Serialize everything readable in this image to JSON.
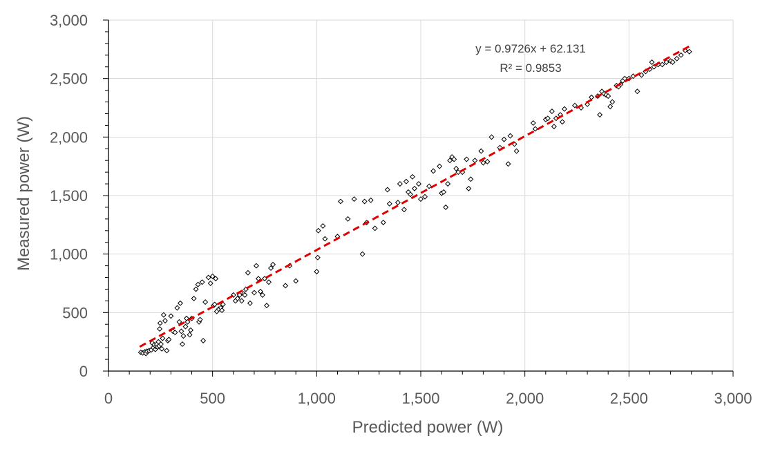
{
  "chart_data": {
    "type": "scatter",
    "xlabel": "Predicted power (W)",
    "ylabel": "Measured power (W)",
    "xlim": [
      0,
      3000
    ],
    "ylim": [
      0,
      3000
    ],
    "xticks": [
      0,
      500,
      1000,
      1500,
      2000,
      2500,
      3000
    ],
    "yticks": [
      0,
      500,
      1000,
      1500,
      2000,
      2500,
      3000
    ],
    "xtick_labels": [
      "0",
      "500",
      "1,000",
      "1,500",
      "2,000",
      "2,500",
      "3,000"
    ],
    "ytick_labels": [
      "0",
      "500",
      "1,000",
      "1,500",
      "2,000",
      "2,500",
      "3,000"
    ],
    "grid": true,
    "legend": "none",
    "marker": "diamond-open",
    "marker_color": "#000000",
    "series": [
      {
        "points": [
          [
            155,
            160
          ],
          [
            165,
            155
          ],
          [
            175,
            165
          ],
          [
            180,
            150
          ],
          [
            185,
            170
          ],
          [
            195,
            175
          ],
          [
            205,
            180
          ],
          [
            210,
            240
          ],
          [
            215,
            200
          ],
          [
            220,
            225
          ],
          [
            225,
            185
          ],
          [
            228,
            210
          ],
          [
            232,
            230
          ],
          [
            236,
            205
          ],
          [
            240,
            250
          ],
          [
            243,
            215
          ],
          [
            246,
            360
          ],
          [
            248,
            410
          ],
          [
            252,
            230
          ],
          [
            256,
            190
          ],
          [
            260,
            280
          ],
          [
            265,
            480
          ],
          [
            272,
            430
          ],
          [
            280,
            175
          ],
          [
            285,
            260
          ],
          [
            290,
            270
          ],
          [
            300,
            470
          ],
          [
            310,
            340
          ],
          [
            320,
            330
          ],
          [
            330,
            540
          ],
          [
            340,
            420
          ],
          [
            345,
            580
          ],
          [
            350,
            340
          ],
          [
            355,
            230
          ],
          [
            360,
            300
          ],
          [
            370,
            380
          ],
          [
            375,
            450
          ],
          [
            380,
            420
          ],
          [
            390,
            310
          ],
          [
            395,
            350
          ],
          [
            400,
            450
          ],
          [
            410,
            620
          ],
          [
            420,
            700
          ],
          [
            430,
            740
          ],
          [
            435,
            420
          ],
          [
            440,
            440
          ],
          [
            450,
            760
          ],
          [
            455,
            260
          ],
          [
            465,
            590
          ],
          [
            480,
            800
          ],
          [
            490,
            750
          ],
          [
            500,
            810
          ],
          [
            505,
            560
          ],
          [
            510,
            570
          ],
          [
            515,
            790
          ],
          [
            520,
            510
          ],
          [
            530,
            530
          ],
          [
            540,
            540
          ],
          [
            545,
            520
          ],
          [
            550,
            570
          ],
          [
            600,
            650
          ],
          [
            610,
            600
          ],
          [
            620,
            620
          ],
          [
            630,
            650
          ],
          [
            640,
            600
          ],
          [
            650,
            660
          ],
          [
            655,
            650
          ],
          [
            660,
            700
          ],
          [
            670,
            840
          ],
          [
            680,
            580
          ],
          [
            700,
            670
          ],
          [
            710,
            900
          ],
          [
            720,
            790
          ],
          [
            730,
            680
          ],
          [
            740,
            650
          ],
          [
            750,
            790
          ],
          [
            760,
            560
          ],
          [
            770,
            760
          ],
          [
            780,
            880
          ],
          [
            790,
            910
          ],
          [
            850,
            730
          ],
          [
            870,
            900
          ],
          [
            900,
            770
          ],
          [
            1000,
            850
          ],
          [
            1005,
            970
          ],
          [
            1008,
            1200
          ],
          [
            1030,
            1240
          ],
          [
            1040,
            1130
          ],
          [
            1100,
            1150
          ],
          [
            1115,
            1450
          ],
          [
            1150,
            1300
          ],
          [
            1180,
            1470
          ],
          [
            1220,
            1000
          ],
          [
            1230,
            1450
          ],
          [
            1240,
            1270
          ],
          [
            1260,
            1460
          ],
          [
            1280,
            1220
          ],
          [
            1320,
            1270
          ],
          [
            1340,
            1550
          ],
          [
            1350,
            1430
          ],
          [
            1390,
            1440
          ],
          [
            1400,
            1600
          ],
          [
            1420,
            1380
          ],
          [
            1430,
            1620
          ],
          [
            1440,
            1530
          ],
          [
            1450,
            1510
          ],
          [
            1460,
            1660
          ],
          [
            1470,
            1560
          ],
          [
            1490,
            1600
          ],
          [
            1500,
            1470
          ],
          [
            1520,
            1490
          ],
          [
            1540,
            1580
          ],
          [
            1560,
            1710
          ],
          [
            1590,
            1750
          ],
          [
            1600,
            1520
          ],
          [
            1610,
            1530
          ],
          [
            1620,
            1400
          ],
          [
            1630,
            1600
          ],
          [
            1640,
            1800
          ],
          [
            1650,
            1830
          ],
          [
            1660,
            1810
          ],
          [
            1670,
            1730
          ],
          [
            1680,
            1700
          ],
          [
            1700,
            1700
          ],
          [
            1720,
            1810
          ],
          [
            1730,
            1560
          ],
          [
            1740,
            1640
          ],
          [
            1760,
            1800
          ],
          [
            1790,
            1880
          ],
          [
            1800,
            1780
          ],
          [
            1820,
            1790
          ],
          [
            1840,
            2000
          ],
          [
            1880,
            1910
          ],
          [
            1900,
            1980
          ],
          [
            1920,
            1770
          ],
          [
            1930,
            2010
          ],
          [
            1950,
            1940
          ],
          [
            1960,
            1880
          ],
          [
            2040,
            2120
          ],
          [
            2050,
            2070
          ],
          [
            2100,
            2150
          ],
          [
            2110,
            2160
          ],
          [
            2130,
            2220
          ],
          [
            2140,
            2090
          ],
          [
            2150,
            2160
          ],
          [
            2170,
            2190
          ],
          [
            2180,
            2130
          ],
          [
            2190,
            2240
          ],
          [
            2240,
            2270
          ],
          [
            2270,
            2250
          ],
          [
            2300,
            2280
          ],
          [
            2320,
            2340
          ],
          [
            2350,
            2350
          ],
          [
            2360,
            2190
          ],
          [
            2370,
            2390
          ],
          [
            2380,
            2370
          ],
          [
            2390,
            2360
          ],
          [
            2400,
            2350
          ],
          [
            2410,
            2260
          ],
          [
            2420,
            2300
          ],
          [
            2440,
            2440
          ],
          [
            2450,
            2430
          ],
          [
            2460,
            2450
          ],
          [
            2470,
            2480
          ],
          [
            2480,
            2500
          ],
          [
            2500,
            2500
          ],
          [
            2520,
            2520
          ],
          [
            2540,
            2390
          ],
          [
            2560,
            2530
          ],
          [
            2580,
            2560
          ],
          [
            2600,
            2580
          ],
          [
            2610,
            2640
          ],
          [
            2620,
            2600
          ],
          [
            2640,
            2620
          ],
          [
            2660,
            2620
          ],
          [
            2680,
            2640
          ],
          [
            2700,
            2650
          ],
          [
            2710,
            2640
          ],
          [
            2730,
            2670
          ],
          [
            2750,
            2700
          ],
          [
            2770,
            2740
          ],
          [
            2790,
            2730
          ]
        ]
      }
    ],
    "trendline": {
      "slope": 0.9726,
      "intercept": 62.131,
      "x_range": [
        150,
        2790
      ],
      "color": "#e00000",
      "style": "dashed",
      "equation": "y = 0.9726x + 62.131",
      "r2": "R² = 0.9853"
    }
  }
}
